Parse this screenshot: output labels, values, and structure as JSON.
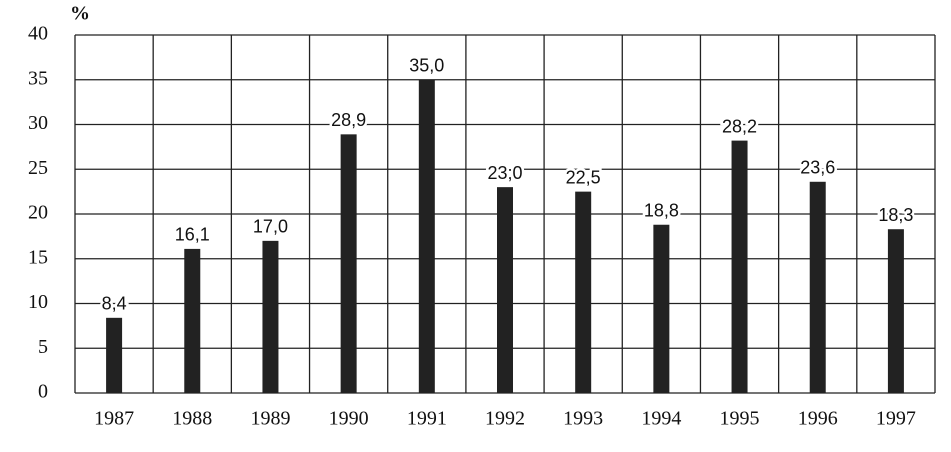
{
  "chart_data": {
    "type": "bar",
    "y_label": "%",
    "categories": [
      "1987",
      "1988",
      "1989",
      "1990",
      "1991",
      "1992",
      "1993",
      "1994",
      "1995",
      "1996",
      "1997"
    ],
    "values": [
      8.4,
      16.1,
      17.0,
      28.9,
      35.0,
      23.0,
      22.5,
      18.8,
      28.2,
      23.6,
      18.3
    ],
    "value_labels": [
      "8,4",
      "16,1",
      "17,0",
      "28,9",
      "35,0",
      "23;0",
      "22,5",
      "18,8",
      "28,2",
      "23,6",
      "18,3"
    ],
    "color": "#222222",
    "ylim": [
      0,
      40
    ],
    "yticks": [
      0,
      5,
      10,
      15,
      20,
      25,
      30,
      35,
      40
    ],
    "grid": true
  }
}
